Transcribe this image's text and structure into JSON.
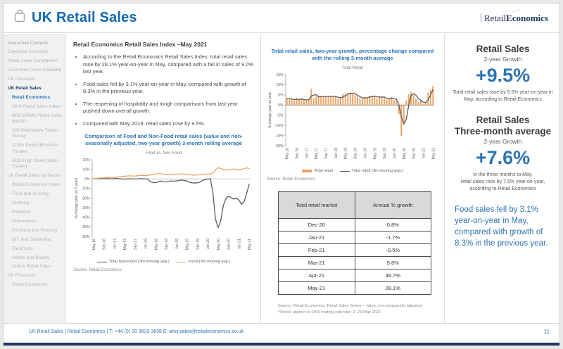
{
  "colors": {
    "accent_blue": "#2e74b5",
    "title_blue": "#1268b1",
    "navy": "#1f3864",
    "orange": "#eda15f",
    "series_gray": "#595959",
    "table_header_bg": "#d9d9d9"
  },
  "header": {
    "title": "UK Retail Sales",
    "logo_part1": "Retail",
    "logo_part2": "Economics"
  },
  "sidebar": {
    "heading": "Interactive Contents",
    "items": [
      {
        "label": "Executive Summary",
        "level": 0,
        "style": "default"
      },
      {
        "label": "Retail Sales Comparison",
        "level": 0,
        "style": "default"
      },
      {
        "label": "Consumer Pulse Calendar",
        "level": 0,
        "style": "default"
      },
      {
        "label": "UK Overview",
        "level": 0,
        "style": "default"
      },
      {
        "label": "UK Retail Sales",
        "level": 0,
        "style": "section"
      },
      {
        "label": "Retail Economics",
        "level": 1,
        "style": "active"
      },
      {
        "label": "ONS Retail Sales Index",
        "level": 1,
        "style": "default"
      },
      {
        "label": "BRC-KPMG Retail Sales Monitor",
        "level": 1,
        "style": "default"
      },
      {
        "label": "CBI Distributive Trades Survey",
        "level": 1,
        "style": "default"
      },
      {
        "label": "Coffer Peach Business Tracker",
        "level": 1,
        "style": "default"
      },
      {
        "label": "BDO High Street Sales Tracker",
        "level": 1,
        "style": "default"
      },
      {
        "label": "UK Retail Sales by Sector",
        "level": 0,
        "style": "default"
      },
      {
        "label": "Retail Economics Index",
        "level": 1,
        "style": "default"
      },
      {
        "label": "Food and Grocery",
        "level": 1,
        "style": "default"
      },
      {
        "label": "Clothing",
        "level": 1,
        "style": "default"
      },
      {
        "label": "Footwear",
        "level": 1,
        "style": "default"
      },
      {
        "label": "Homewares",
        "level": 1,
        "style": "default"
      },
      {
        "label": "Furniture and Flooring",
        "level": 1,
        "style": "default"
      },
      {
        "label": "DIY and Gardening",
        "level": 1,
        "style": "default"
      },
      {
        "label": "Electricals",
        "level": 1,
        "style": "default"
      },
      {
        "label": "Health and Beauty",
        "level": 1,
        "style": "default"
      },
      {
        "label": "Online Retail Sales",
        "level": 1,
        "style": "default"
      },
      {
        "label": "UK Forecasts",
        "level": 0,
        "style": "default"
      },
      {
        "label": "Retail Economics",
        "level": 1,
        "style": "default"
      }
    ]
  },
  "main": {
    "title": "Retail Economics Retail Sales Index –May 2021",
    "bullets": [
      "According to the Retail Economics Retail Sales Index, total retail sales rose by 28.1% year-on-year in May, compared with a fall in sales of 9.0% last year.",
      "Food sales fell by 3.1% year-on-year in May, compared with growth of 8.3% in the previous year.",
      "The reopening of hospitality and tough comparisons from last year pushed down overall growth.",
      "Compared with May 2019, retail sales rose by 9.5%."
    ],
    "chart_title": "Comparison of Food and Non-Food retail sales (value and non-seasonally adjusted, two-year growth) 3-month rolling average",
    "source": "Source: Retail Economics"
  },
  "middle": {
    "chart_title": "Total retail sales, two-year growth, percentage change compared with the rolling 3-month average",
    "source": "Source: Retail Economics",
    "table": {
      "headers": [
        "Total retail market",
        "Annual % growth"
      ],
      "rows": [
        [
          "Dec-20",
          "0.8%"
        ],
        [
          "Jan-21",
          "-1.7%"
        ],
        [
          "Feb-21",
          "-0.5%"
        ],
        [
          "Mar-21",
          "9.6%"
        ],
        [
          "Apr-21",
          "49.7%"
        ],
        [
          "May-21",
          "28.1%"
        ]
      ],
      "footnote1": "Source: Retail Economics: Retail Sales Series – value, non-seasonally adjusted",
      "footnote2": "*Period aligned to ONS trading calendar: 2 -29 May 2021"
    }
  },
  "right": {
    "block1": {
      "title": "Retail Sales",
      "subtitle": "2-year Growth",
      "value": "+9.5%",
      "caption": "Total retail sales rose by 9.5% year-on-year in May, according to Retail Economics"
    },
    "block2": {
      "title": "Retail Sales",
      "title2": "Three-month average",
      "subtitle": "2-year Growth",
      "value": "+7.6%",
      "caption": "In the three months to May,\nretail sales rose by 7.6% year-on-year, according to Retail Economics"
    },
    "highlight": "Food sales fell by 3.1% year-on-year in May, compared with growth of 8.3% in the previous year."
  },
  "footer": {
    "text": "UK Retail Sales  | Retail Economics | T: +44 (0) 20 3633 3698   E: amy.yates@retaileconomics.co.uk",
    "page": "11"
  },
  "chart_data": [
    {
      "type": "line",
      "title": "Food  vs. Non-Food",
      "ylabel": "% change year on 2 years",
      "ylim": [
        -60,
        20
      ],
      "ytick_step": 10,
      "x_tick_every": 4,
      "legend_position": "bottom",
      "x": [
        "May 16",
        "Jun 16",
        "Jul 16",
        "Aug 16",
        "Sep 16",
        "Oct 16",
        "Nov 16",
        "Dec 16",
        "Jan 17",
        "Feb 17",
        "Mar 17",
        "Apr 17",
        "May 17",
        "Jun 17",
        "Jul 17",
        "Aug 17",
        "Sep 17",
        "Oct 17",
        "Nov 17",
        "Dec 17",
        "Jan 18",
        "Feb 18",
        "Mar 18",
        "Apr 18",
        "May 18",
        "Jun 18",
        "Jul 18",
        "Aug 18",
        "Sep 18",
        "Oct 18",
        "Nov 18",
        "Dec 18",
        "Jan 19",
        "Feb 19",
        "Mar 19",
        "Apr 19",
        "May 19",
        "Jun 19",
        "Jul 19",
        "Aug 19",
        "Sep 19",
        "Oct 19",
        "Nov 19",
        "Dec 19",
        "Jan 20",
        "Feb 20",
        "Mar 20",
        "Apr 20",
        "May 20",
        "Jun 20",
        "Jul 20",
        "Aug 20",
        "Sep 20",
        "Oct 20",
        "Nov 20",
        "Dec 20",
        "Jan 21",
        "Feb 21",
        "Mar 21",
        "Apr 21",
        "May 21"
      ],
      "series": [
        {
          "name": "Total Non-Food (3m moving avg.)",
          "color": "#595959",
          "values": [
            0.2,
            0.4,
            0.3,
            0.1,
            0.3,
            0.5,
            0.2,
            0.1,
            0.3,
            0.4,
            0.2,
            0.0,
            -0.3,
            0.0,
            0.2,
            0.1,
            -0.2,
            0.0,
            0.3,
            0.2,
            0.1,
            -0.4,
            -3.2,
            -3.6,
            -3.9,
            -3.1,
            -2.2,
            -3.1,
            -3.0,
            -2.6,
            -2.1,
            -2.4,
            -2.0,
            -1.6,
            -1.2,
            -1.6,
            -2.2,
            -3.6,
            -4.1,
            -4.3,
            -4.0,
            -3.4,
            -1.6,
            -0.6,
            -0.2,
            0.2,
            -14.0,
            -42.0,
            -51.0,
            -44.0,
            -28.0,
            -20.5,
            -18.0,
            -19.5,
            -21.0,
            -20.0,
            -22.0,
            -26.5,
            -24.0,
            -15.0,
            -5.5
          ]
        },
        {
          "name": "Food (3m moving avg.)",
          "color": "#eda15f",
          "values": [
            0.3,
            0.5,
            0.8,
            1.0,
            0.9,
            1.2,
            1.5,
            1.4,
            1.6,
            1.8,
            2.2,
            2.6,
            2.8,
            3.0,
            3.2,
            3.1,
            2.9,
            3.3,
            3.6,
            3.8,
            3.5,
            3.7,
            4.3,
            4.8,
            5.2,
            5.5,
            5.3,
            5.0,
            4.8,
            4.6,
            4.4,
            4.6,
            4.8,
            5.0,
            5.4,
            5.0,
            4.7,
            4.4,
            4.1,
            3.9,
            4.1,
            4.3,
            4.6,
            4.9,
            5.1,
            5.3,
            6.0,
            9.5,
            11.8,
            10.8,
            9.8,
            9.2,
            9.6,
            10.1,
            10.3,
            9.9,
            9.6,
            9.9,
            10.6,
            11.6,
            10.9
          ]
        }
      ]
    },
    {
      "type": "bar+line",
      "title": "Total Retail",
      "ylabel": "% change year on year",
      "ylim": [
        -20,
        15
      ],
      "ytick_step": 5,
      "x_tick_every": 4,
      "legend_position": "bottom",
      "x": [
        "May 16",
        "Jun 16",
        "Jul 16",
        "Aug 16",
        "Sep 16",
        "Oct 16",
        "Nov 16",
        "Dec 16",
        "Jan 17",
        "Feb 17",
        "Mar 17",
        "Apr 17",
        "May 17",
        "Jun 17",
        "Jul 17",
        "Aug 17",
        "Sep 17",
        "Oct 17",
        "Nov 17",
        "Dec 17",
        "Jan 18",
        "Feb 18",
        "Mar 18",
        "Apr 18",
        "May 18",
        "Jun 18",
        "Jul 18",
        "Aug 18",
        "Sep 18",
        "Oct 18",
        "Nov 18",
        "Dec 18",
        "Jan 19",
        "Feb 19",
        "Mar 19",
        "Apr 19",
        "May 19",
        "Jun 19",
        "Jul 19",
        "Aug 19",
        "Sep 19",
        "Oct 19",
        "Nov 19",
        "Dec 19",
        "Jan 20",
        "Feb 20",
        "Mar 20",
        "Apr 20",
        "May 20",
        "Jun 20",
        "Jul 20",
        "Aug 20",
        "Sep 20",
        "Oct 20",
        "Nov 20",
        "Dec 20",
        "Jan 21",
        "Feb 21",
        "Mar 21",
        "Apr 21",
        "May 21"
      ],
      "bar_series": {
        "name": "Total retail",
        "color": "#eda15f",
        "values": [
          3.4,
          2.6,
          3.1,
          2.2,
          3.4,
          2.6,
          3.0,
          2.4,
          2.2,
          3.1,
          8.0,
          3.4,
          4.1,
          4.4,
          4.0,
          4.4,
          4.1,
          4.5,
          4.0,
          4.4,
          4.1,
          3.1,
          3.4,
          5.4,
          5.1,
          5.9,
          6.2,
          5.4,
          5.0,
          4.1,
          3.4,
          3.1,
          4.0,
          3.6,
          4.4,
          4.6,
          4.1,
          3.4,
          4.4,
          4.0,
          3.4,
          2.6,
          3.0,
          4.0,
          2.4,
          2.0,
          -4.5,
          -15.2,
          -8.5,
          2.2,
          5.4,
          6.4,
          5.0,
          3.1,
          1.6,
          2.0,
          0.6,
          1.1,
          6.0,
          7.6,
          9.5
        ]
      },
      "line_series": {
        "name": "Total retail (3m moving avg.)",
        "color": "#595959",
        "derived": "3-month moving average of Total retail values"
      }
    }
  ]
}
